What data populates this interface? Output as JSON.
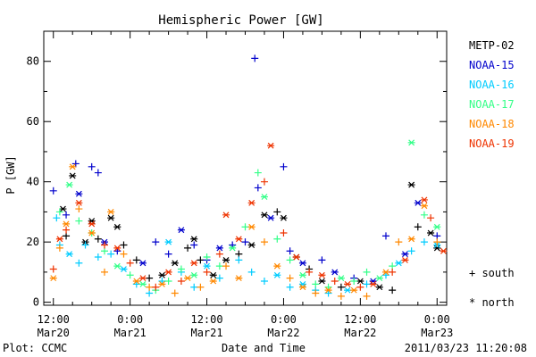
{
  "chart_data": {
    "type": "scatter",
    "title": "Hemispheric Power [GW]",
    "xlabel": "Date and Time",
    "ylabel": "P [GW]",
    "xlim": [
      -1.5,
      61.5
    ],
    "ylim": [
      -1,
      90
    ],
    "yticks": [
      0,
      20,
      40,
      60,
      80
    ],
    "xticks": [
      {
        "x": 0,
        "time": "12:00",
        "date": "Mar20"
      },
      {
        "x": 12,
        "time": "0:00",
        "date": "Mar21"
      },
      {
        "x": 24,
        "time": "12:00",
        "date": "Mar21"
      },
      {
        "x": 36,
        "time": "0:00",
        "date": "Mar22"
      },
      {
        "x": 48,
        "time": "12:00",
        "date": "Mar22"
      },
      {
        "x": 60,
        "time": "0:00",
        "date": "Mar23"
      }
    ],
    "minor_xtick_step": 3,
    "minor_ytick_step": 10,
    "grid": false,
    "legend_position": "right",
    "marker_legend": {
      "south": "+ south",
      "north": "* north"
    },
    "series": [
      {
        "name": "METP-02",
        "color": "#000000",
        "points": [
          [
            1.5,
            31,
            "n"
          ],
          [
            2,
            22,
            "s"
          ],
          [
            3,
            42,
            "n"
          ],
          [
            5,
            20,
            "n"
          ],
          [
            6,
            27,
            "n"
          ],
          [
            7,
            21,
            "s"
          ],
          [
            9,
            28,
            "n"
          ],
          [
            10,
            25,
            "n"
          ],
          [
            11,
            19,
            "s"
          ],
          [
            13,
            14,
            "s"
          ],
          [
            15,
            8,
            "s"
          ],
          [
            17,
            9,
            "n"
          ],
          [
            19,
            13,
            "n"
          ],
          [
            21,
            18,
            "s"
          ],
          [
            22,
            21,
            "n"
          ],
          [
            23,
            14,
            "s"
          ],
          [
            25,
            9,
            "n"
          ],
          [
            27,
            14,
            "n"
          ],
          [
            29,
            16,
            "s"
          ],
          [
            31,
            19,
            "n"
          ],
          [
            33,
            29,
            "n"
          ],
          [
            35,
            30,
            "s"
          ],
          [
            36,
            28,
            "n"
          ],
          [
            38,
            15,
            "n"
          ],
          [
            40,
            11,
            "s"
          ],
          [
            42,
            7,
            "n"
          ],
          [
            45,
            5,
            "s"
          ],
          [
            48,
            7,
            "n"
          ],
          [
            51,
            5,
            "n"
          ],
          [
            53,
            4,
            "s"
          ],
          [
            56,
            39,
            "n"
          ],
          [
            57,
            25,
            "s"
          ],
          [
            59,
            23,
            "n"
          ],
          [
            60,
            18,
            "n"
          ]
        ]
      },
      {
        "name": "NOAA-15",
        "color": "#0000cc",
        "points": [
          [
            0,
            37,
            "s"
          ],
          [
            2,
            29,
            "s"
          ],
          [
            3.5,
            46,
            "s"
          ],
          [
            4,
            36,
            "n"
          ],
          [
            6,
            45,
            "s"
          ],
          [
            7,
            43,
            "s"
          ],
          [
            8,
            20,
            "n"
          ],
          [
            10,
            17,
            "s"
          ],
          [
            14,
            13,
            "n"
          ],
          [
            16,
            20,
            "s"
          ],
          [
            18,
            16,
            "s"
          ],
          [
            20,
            24,
            "n"
          ],
          [
            22,
            19,
            "s"
          ],
          [
            24,
            14,
            "s"
          ],
          [
            26,
            18,
            "n"
          ],
          [
            28,
            19,
            "s"
          ],
          [
            30,
            20,
            "s"
          ],
          [
            31.5,
            81,
            "s"
          ],
          [
            32,
            38,
            "s"
          ],
          [
            34,
            28,
            "n"
          ],
          [
            36,
            45,
            "s"
          ],
          [
            37,
            17,
            "s"
          ],
          [
            39,
            13,
            "n"
          ],
          [
            42,
            14,
            "s"
          ],
          [
            44,
            10,
            "n"
          ],
          [
            47,
            8,
            "s"
          ],
          [
            50,
            7,
            "n"
          ],
          [
            52,
            22,
            "s"
          ],
          [
            55,
            16,
            "n"
          ],
          [
            57,
            33,
            "n"
          ],
          [
            60,
            22,
            "s"
          ]
        ]
      },
      {
        "name": "NOAA-16",
        "color": "#00ccff",
        "points": [
          [
            0.5,
            28,
            "s"
          ],
          [
            1,
            19,
            "s"
          ],
          [
            2.5,
            16,
            "n"
          ],
          [
            4,
            13,
            "s"
          ],
          [
            5,
            19,
            "s"
          ],
          [
            7,
            15,
            "s"
          ],
          [
            9,
            16,
            "s"
          ],
          [
            11,
            11,
            "n"
          ],
          [
            13,
            6,
            "s"
          ],
          [
            15,
            3,
            "s"
          ],
          [
            17,
            7,
            "s"
          ],
          [
            18,
            20,
            "n"
          ],
          [
            20,
            10,
            "s"
          ],
          [
            22,
            5,
            "s"
          ],
          [
            24,
            12,
            "n"
          ],
          [
            26,
            8,
            "s"
          ],
          [
            29,
            14,
            "s"
          ],
          [
            31,
            10,
            "s"
          ],
          [
            33,
            7,
            "s"
          ],
          [
            35,
            9,
            "n"
          ],
          [
            37,
            5,
            "s"
          ],
          [
            39,
            6,
            "n"
          ],
          [
            41,
            4,
            "s"
          ],
          [
            43,
            3,
            "s"
          ],
          [
            46,
            4,
            "n"
          ],
          [
            49,
            6,
            "s"
          ],
          [
            52,
            9,
            "s"
          ],
          [
            54,
            13,
            "n"
          ],
          [
            56,
            17,
            "s"
          ],
          [
            58,
            20,
            "s"
          ],
          [
            60,
            19,
            "n"
          ]
        ]
      },
      {
        "name": "NOAA-17",
        "color": "#33ff88",
        "points": [
          [
            1,
            30,
            "s"
          ],
          [
            2.5,
            39,
            "n"
          ],
          [
            4,
            27,
            "s"
          ],
          [
            6,
            23,
            "s"
          ],
          [
            8,
            17,
            "s"
          ],
          [
            10,
            12,
            "n"
          ],
          [
            12,
            9,
            "s"
          ],
          [
            14,
            6,
            "n"
          ],
          [
            16,
            4,
            "s"
          ],
          [
            18,
            7,
            "s"
          ],
          [
            20,
            11,
            "s"
          ],
          [
            22,
            9,
            "n"
          ],
          [
            24,
            15,
            "s"
          ],
          [
            26,
            12,
            "s"
          ],
          [
            28,
            18,
            "n"
          ],
          [
            30,
            25,
            "s"
          ],
          [
            32,
            43,
            "s"
          ],
          [
            33,
            35,
            "n"
          ],
          [
            35,
            21,
            "s"
          ],
          [
            37,
            14,
            "s"
          ],
          [
            39,
            9,
            "n"
          ],
          [
            41,
            6,
            "s"
          ],
          [
            43,
            5,
            "s"
          ],
          [
            45,
            8,
            "n"
          ],
          [
            47,
            7,
            "s"
          ],
          [
            49,
            10,
            "s"
          ],
          [
            51,
            8,
            "n"
          ],
          [
            53,
            12,
            "s"
          ],
          [
            56,
            53,
            "n"
          ],
          [
            58,
            29,
            "s"
          ],
          [
            60,
            25,
            "n"
          ]
        ]
      },
      {
        "name": "NOAA-18",
        "color": "#ff8800",
        "points": [
          [
            0,
            8,
            "n"
          ],
          [
            1,
            18,
            "s"
          ],
          [
            2,
            26,
            "n"
          ],
          [
            3,
            45,
            "n"
          ],
          [
            4,
            31,
            "s"
          ],
          [
            6,
            23,
            "n"
          ],
          [
            8,
            10,
            "s"
          ],
          [
            9,
            30,
            "n"
          ],
          [
            11,
            16,
            "s"
          ],
          [
            13,
            7,
            "n"
          ],
          [
            15,
            5,
            "s"
          ],
          [
            17,
            6,
            "n"
          ],
          [
            19,
            3,
            "s"
          ],
          [
            21,
            8,
            "n"
          ],
          [
            23,
            5,
            "s"
          ],
          [
            25,
            7,
            "n"
          ],
          [
            27,
            12,
            "s"
          ],
          [
            29,
            8,
            "n"
          ],
          [
            31,
            25,
            "n"
          ],
          [
            33,
            20,
            "s"
          ],
          [
            35,
            12,
            "n"
          ],
          [
            37,
            8,
            "s"
          ],
          [
            39,
            5,
            "n"
          ],
          [
            41,
            3,
            "s"
          ],
          [
            43,
            4,
            "n"
          ],
          [
            45,
            2,
            "s"
          ],
          [
            47,
            4,
            "n"
          ],
          [
            49,
            2,
            "s"
          ],
          [
            52,
            10,
            "n"
          ],
          [
            54,
            20,
            "s"
          ],
          [
            56,
            21,
            "n"
          ],
          [
            58,
            32,
            "n"
          ],
          [
            60,
            20,
            "s"
          ]
        ]
      },
      {
        "name": "NOAA-19",
        "color": "#ee3300",
        "points": [
          [
            0,
            11,
            "s"
          ],
          [
            1,
            21,
            "n"
          ],
          [
            2,
            24,
            "s"
          ],
          [
            4,
            33,
            "n"
          ],
          [
            6,
            26,
            "n"
          ],
          [
            8,
            19,
            "s"
          ],
          [
            10,
            18,
            "n"
          ],
          [
            12,
            13,
            "s"
          ],
          [
            14,
            8,
            "n"
          ],
          [
            16,
            5,
            "s"
          ],
          [
            18,
            10,
            "n"
          ],
          [
            20,
            7,
            "s"
          ],
          [
            22,
            13,
            "n"
          ],
          [
            24,
            10,
            "s"
          ],
          [
            26,
            16,
            "s"
          ],
          [
            27,
            29,
            "n"
          ],
          [
            29,
            21,
            "n"
          ],
          [
            31,
            33,
            "n"
          ],
          [
            33,
            40,
            "s"
          ],
          [
            34,
            52,
            "n"
          ],
          [
            36,
            23,
            "s"
          ],
          [
            38,
            15,
            "n"
          ],
          [
            40,
            10,
            "s"
          ],
          [
            42,
            9,
            "n"
          ],
          [
            44,
            7,
            "s"
          ],
          [
            46,
            6,
            "n"
          ],
          [
            48,
            5,
            "s"
          ],
          [
            50,
            6,
            "n"
          ],
          [
            53,
            10,
            "s"
          ],
          [
            55,
            14,
            "n"
          ],
          [
            58,
            34,
            "n"
          ],
          [
            59,
            28,
            "s"
          ],
          [
            61,
            17,
            "n"
          ]
        ]
      }
    ]
  },
  "footer": {
    "plot_label": "Plot: CCMC",
    "timestamp": "2011/03/23 11:20:08"
  }
}
